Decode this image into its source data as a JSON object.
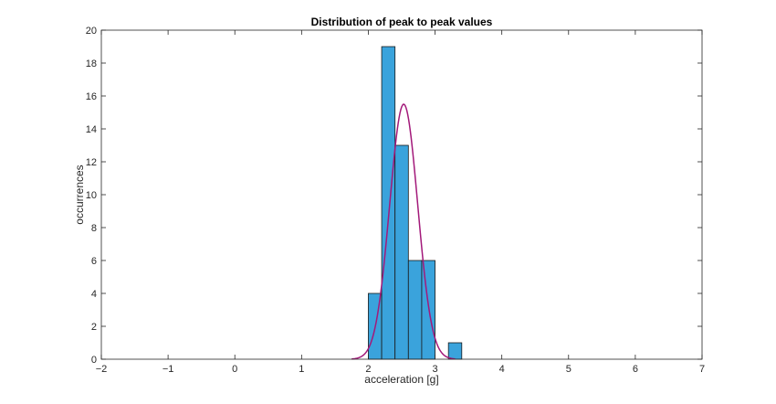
{
  "chart_data": {
    "type": "bar",
    "subtype": "histogram-with-normal-fit",
    "title": "Distribution of peak to peak values",
    "xlabel": "acceleration [g]",
    "ylabel": "occurrences",
    "xlim": [
      -2,
      7
    ],
    "ylim": [
      0,
      20
    ],
    "xticks": [
      -2,
      -1,
      0,
      1,
      2,
      3,
      4,
      5,
      6,
      7
    ],
    "yticks": [
      0,
      2,
      4,
      6,
      8,
      10,
      12,
      14,
      16,
      18,
      20
    ],
    "grid": false,
    "box": true,
    "bins": [
      {
        "start": 2.0,
        "end": 2.2,
        "count": 4
      },
      {
        "start": 2.2,
        "end": 2.4,
        "count": 19
      },
      {
        "start": 2.4,
        "end": 2.6,
        "count": 13
      },
      {
        "start": 2.6,
        "end": 2.8,
        "count": 6
      },
      {
        "start": 2.8,
        "end": 3.0,
        "count": 6
      },
      {
        "start": 3.2,
        "end": 3.4,
        "count": 1
      }
    ],
    "fit_curve": {
      "type": "normal",
      "peak": 15.5,
      "mean": 2.53,
      "sigma": 0.21,
      "x_range": [
        1.75,
        3.3
      ]
    },
    "colors": {
      "bar_fill": "#3aa3dc",
      "bar_edge": "#1a1a1a",
      "fit_line": "#a3197a",
      "axis": "#262626"
    }
  }
}
